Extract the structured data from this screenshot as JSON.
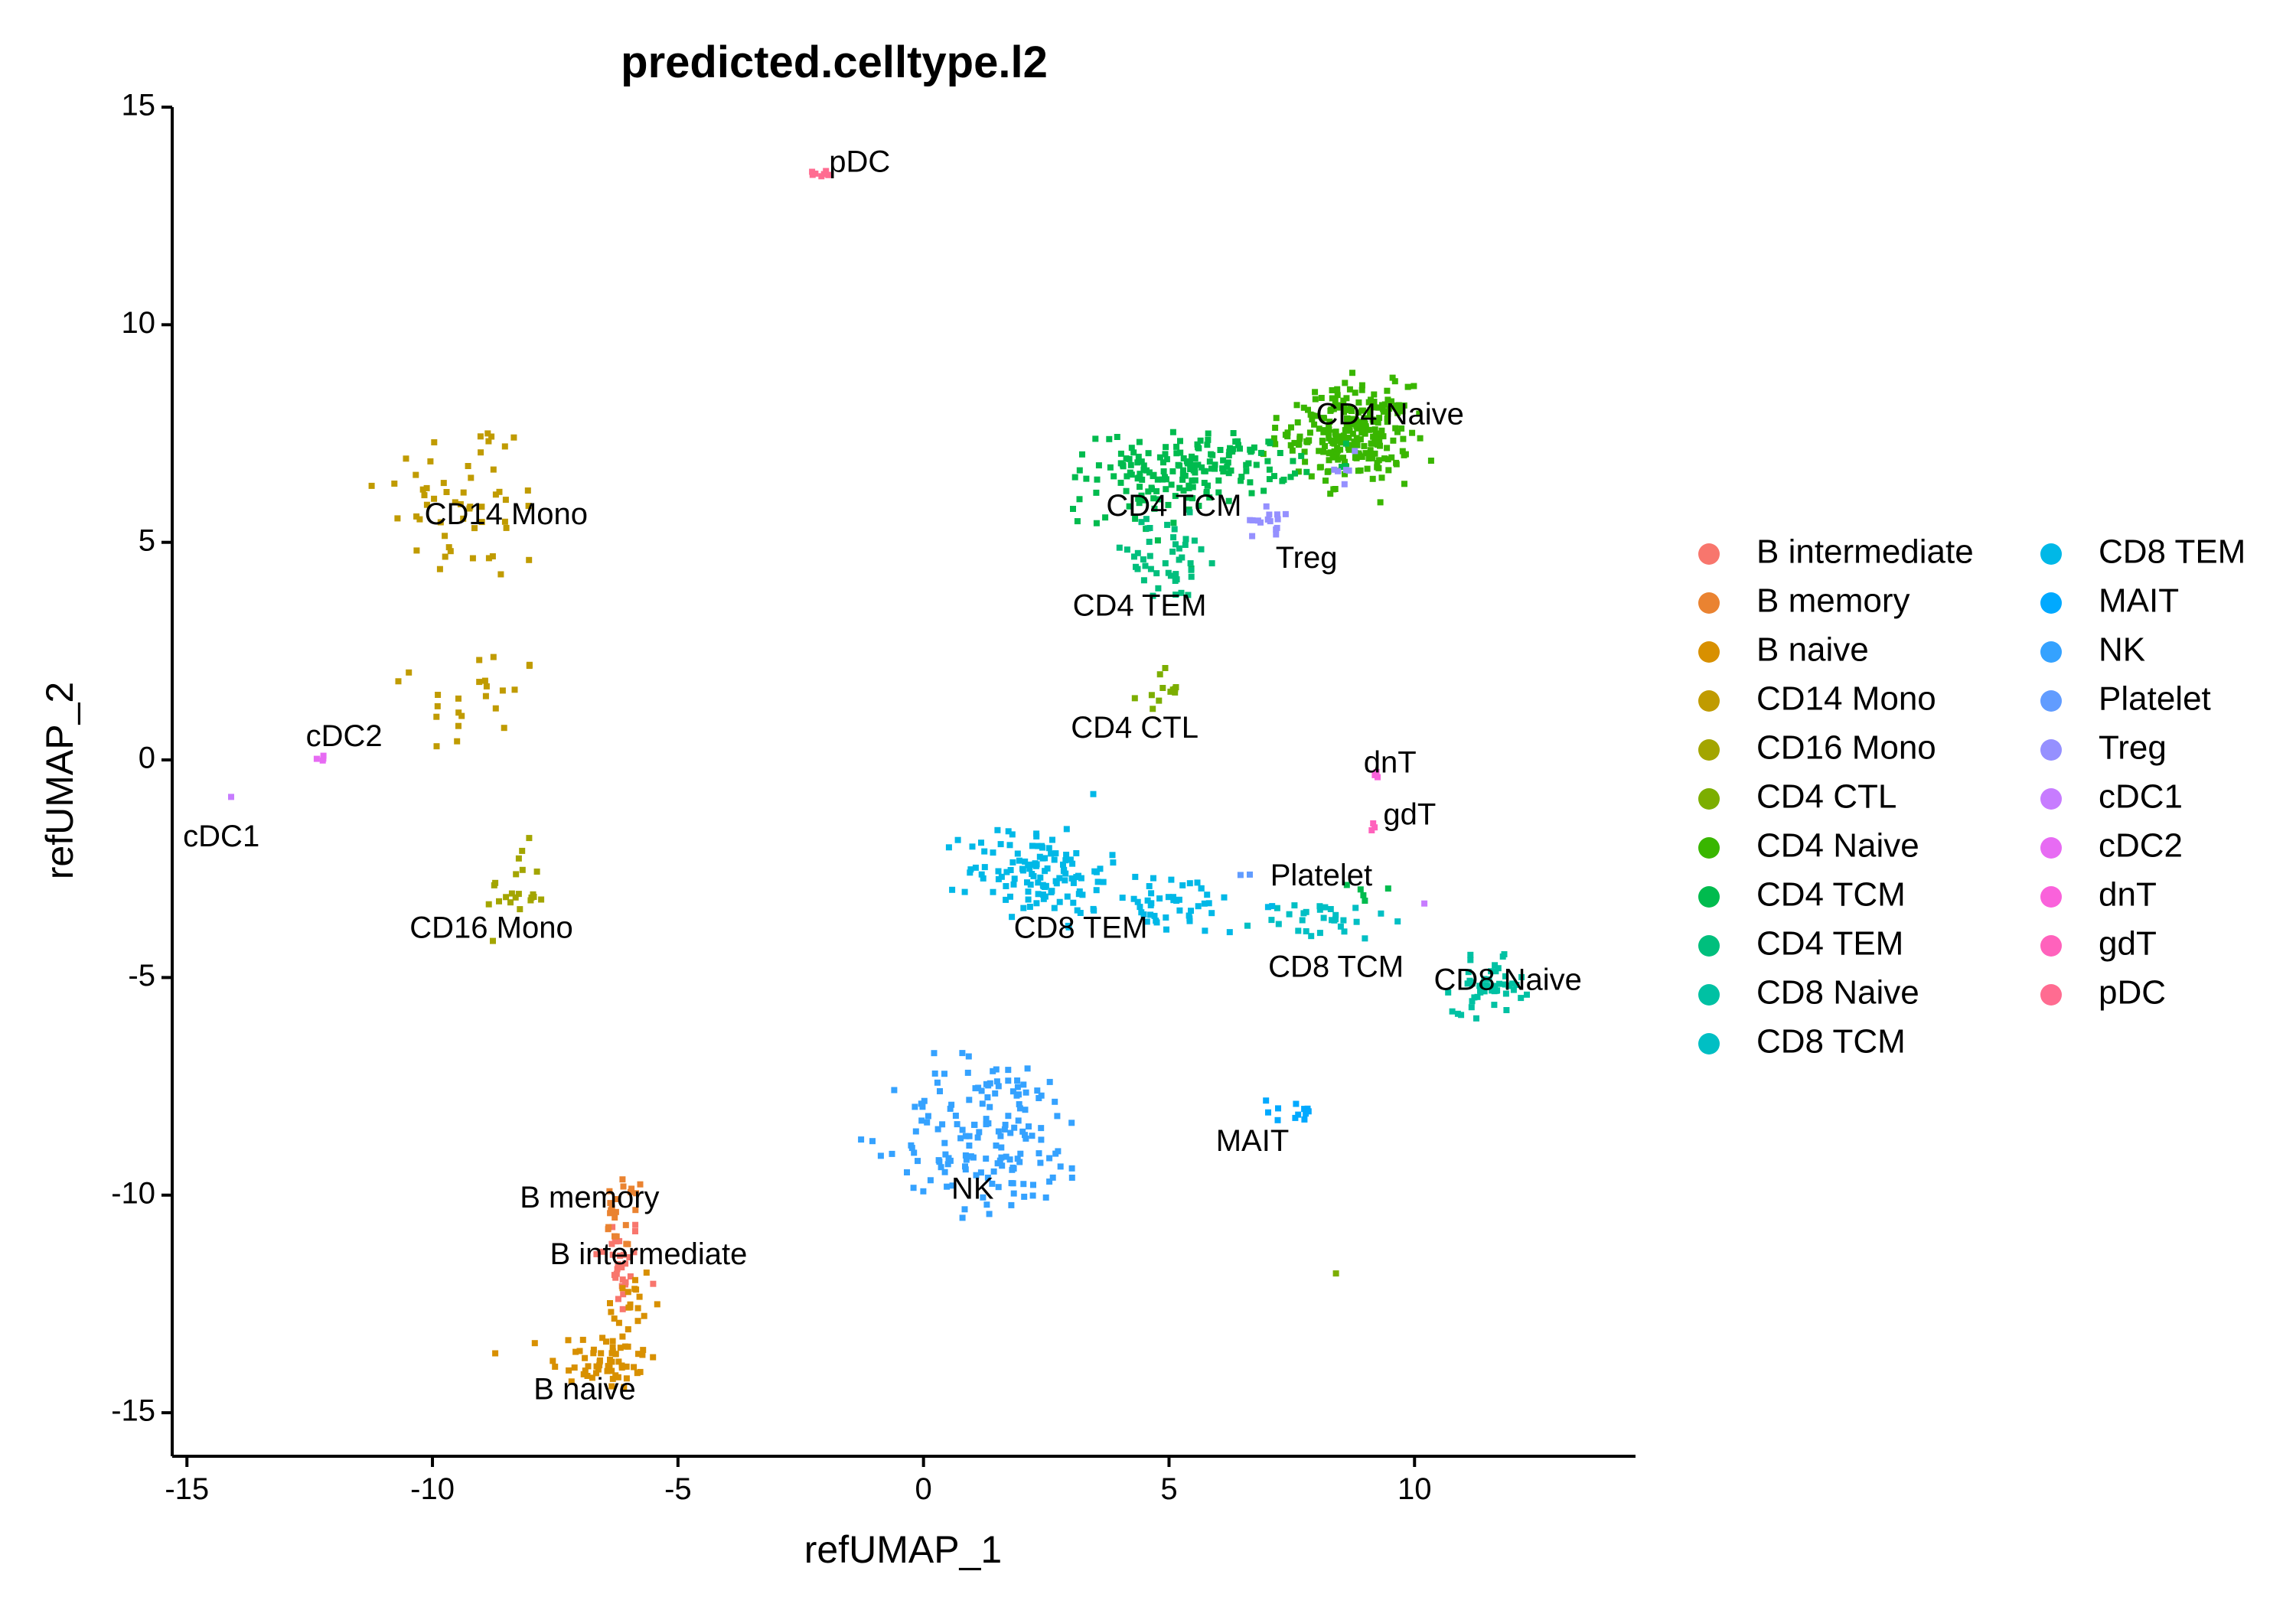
{
  "chart_data": {
    "type": "scatter",
    "title": "predicted.celltype.l2",
    "xlabel": "refUMAP_1",
    "ylabel": "refUMAP_2",
    "xlim": [
      -15.3,
      14.5
    ],
    "ylim": [
      -16,
      15
    ],
    "xticks": [
      -15,
      -10,
      -5,
      0,
      5,
      10
    ],
    "yticks": [
      -15,
      -10,
      -5,
      0,
      5,
      10,
      15
    ],
    "xtick_labels": [
      "-15",
      "-10",
      "-5",
      "0",
      "5",
      "10"
    ],
    "ytick_labels": [
      "-15",
      "-10",
      "-5",
      "0",
      "5",
      "10",
      "15"
    ],
    "legend_position": "right",
    "legend_columns": 2,
    "series": [
      {
        "name": "B intermediate",
        "color": "#F8766D",
        "label_text": "B intermediate",
        "label_at": [
          -5.6,
          -11.4
        ],
        "clusters": [
          {
            "c": [
              -6.2,
              -11.6
            ],
            "s": [
              0.25,
              0.6
            ],
            "n": 30
          }
        ]
      },
      {
        "name": "B memory",
        "color": "#EA8331",
        "label_text": "B memory",
        "label_at": [
          -6.8,
          -10.1
        ],
        "clusters": [
          {
            "c": [
              -6.1,
              -10.4
            ],
            "s": [
              0.22,
              0.45
            ],
            "n": 22
          }
        ]
      },
      {
        "name": "B naive",
        "color": "#D89000",
        "label_text": "B naive",
        "label_at": [
          -6.9,
          -14.5
        ],
        "clusters": [
          {
            "c": [
              -6.5,
              -13.8
            ],
            "s": [
              0.55,
              0.35
            ],
            "n": 60
          },
          {
            "c": [
              -6.0,
              -12.6
            ],
            "s": [
              0.25,
              0.6
            ],
            "n": 20
          }
        ]
      },
      {
        "name": "CD14 Mono",
        "color": "#C09B00",
        "label_text": "CD14 Mono",
        "label_at": [
          -8.5,
          5.6
        ],
        "clusters": [
          {
            "c": [
              -9.3,
              6.0
            ],
            "s": [
              0.9,
              1.0
            ],
            "n": 55
          },
          {
            "c": [
              -9.0,
              1.3
            ],
            "s": [
              0.6,
              0.7
            ],
            "n": 22
          }
        ]
      },
      {
        "name": "CD16 Mono",
        "color": "#A3A500",
        "label_text": "CD16 Mono",
        "label_at": [
          -8.8,
          -3.9
        ],
        "clusters": [
          {
            "c": [
              -8.3,
              -3.0
            ],
            "s": [
              0.3,
              0.5
            ],
            "n": 22
          }
        ]
      },
      {
        "name": "CD4 CTL",
        "color": "#7CAE00",
        "label_text": "CD4 CTL",
        "label_at": [
          4.3,
          0.7
        ],
        "clusters": [
          {
            "c": [
              4.8,
              1.6
            ],
            "s": [
              0.2,
              0.22
            ],
            "n": 12
          },
          {
            "c": [
              8.4,
              -11.8
            ],
            "s": [
              0.02,
              0.02
            ],
            "n": 1
          }
        ]
      },
      {
        "name": "CD4 Naive",
        "color": "#39B600",
        "label_text": "CD4 Naive",
        "label_at": [
          9.5,
          7.9
        ],
        "clusters": [
          {
            "c": [
              8.8,
              7.5
            ],
            "s": [
              0.55,
              0.55
            ],
            "n": 240
          },
          {
            "c": [
              7.8,
              7.3
            ],
            "s": [
              0.6,
              0.4
            ],
            "n": 20
          }
        ]
      },
      {
        "name": "CD4 TCM",
        "color": "#00BB4E",
        "label_text": "CD4 TCM",
        "label_at": [
          5.1,
          5.8
        ],
        "clusters": [
          {
            "c": [
              5.6,
              6.8
            ],
            "s": [
              1.0,
              0.35
            ],
            "n": 150
          },
          {
            "c": [
              4.5,
              5.9
            ],
            "s": [
              0.7,
              0.5
            ],
            "n": 40
          },
          {
            "c": [
              9.1,
              -3.1
            ],
            "s": [
              0.2,
              0.2
            ],
            "n": 5
          }
        ]
      },
      {
        "name": "CD4 TEM",
        "color": "#00BF7D",
        "label_text": "CD4 TEM",
        "label_at": [
          4.4,
          3.5
        ],
        "clusters": [
          {
            "c": [
              4.9,
              4.6
            ],
            "s": [
              0.7,
              0.5
            ],
            "n": 45
          }
        ]
      },
      {
        "name": "CD8 Naive",
        "color": "#00C1A3",
        "label_text": "CD8 Naive",
        "label_at": [
          11.9,
          -5.1
        ],
        "clusters": [
          {
            "c": [
              11.5,
              -5.2
            ],
            "s": [
              0.35,
              0.3
            ],
            "n": 50
          }
        ]
      },
      {
        "name": "CD8 TCM",
        "color": "#00BFC4",
        "label_text": "CD8 TCM",
        "label_at": [
          8.4,
          -4.8
        ],
        "clusters": [
          {
            "c": [
              8.1,
              -3.7
            ],
            "s": [
              0.7,
              0.25
            ],
            "n": 30
          }
        ]
      },
      {
        "name": "CD8 TEM",
        "color": "#00B8E7",
        "label_text": "CD8 TEM",
        "label_at": [
          3.2,
          -3.9
        ],
        "clusters": [
          {
            "c": [
              2.3,
              -2.5
            ],
            "s": [
              0.7,
              0.5
            ],
            "n": 110
          },
          {
            "c": [
              4.8,
              -3.3
            ],
            "s": [
              1.0,
              0.35
            ],
            "n": 60
          }
        ]
      },
      {
        "name": "MAIT",
        "color": "#00A9FF",
        "label_text": "MAIT",
        "label_at": [
          6.7,
          -8.8
        ],
        "clusters": [
          {
            "c": [
              7.3,
              -8.1
            ],
            "s": [
              0.4,
              0.2
            ],
            "n": 12
          }
        ]
      },
      {
        "name": "NK",
        "color": "#35A2FF",
        "label_text": "NK",
        "label_at": [
          1.0,
          -9.9
        ],
        "clusters": [
          {
            "c": [
              1.4,
              -8.6
            ],
            "s": [
              1.0,
              0.9
            ],
            "n": 160
          }
        ]
      },
      {
        "name": "Platelet",
        "color": "#619CFF",
        "label_text": "Platelet",
        "label_at": [
          8.1,
          -2.7
        ],
        "clusters": [
          {
            "c": [
              6.5,
              -2.6
            ],
            "s": [
              0.15,
              0.05
            ],
            "n": 2
          }
        ]
      },
      {
        "name": "Treg",
        "color": "#9590FF",
        "label_text": "Treg",
        "label_at": [
          7.8,
          4.6
        ],
        "clusters": [
          {
            "c": [
              7.1,
              5.5
            ],
            "s": [
              0.2,
              0.15
            ],
            "n": 15
          },
          {
            "c": [
              8.5,
              6.7
            ],
            "s": [
              0.2,
              0.2
            ],
            "n": 6
          }
        ]
      },
      {
        "name": "cDC1",
        "color": "#C77CFF",
        "label_text": "cDC1",
        "label_at": [
          -14.3,
          -1.8
        ],
        "clusters": [
          {
            "c": [
              -14.1,
              -0.85
            ],
            "s": [
              0.03,
              0.03
            ],
            "n": 1
          },
          {
            "c": [
              10.2,
              -3.3
            ],
            "s": [
              0.03,
              0.03
            ],
            "n": 1
          }
        ]
      },
      {
        "name": "cDC2",
        "color": "#E76BF3",
        "label_text": "cDC2",
        "label_at": [
          -11.8,
          0.5
        ],
        "clusters": [
          {
            "c": [
              -12.3,
              0.0
            ],
            "s": [
              0.08,
              0.1
            ],
            "n": 4
          }
        ]
      },
      {
        "name": "dnT",
        "color": "#FA62DB",
        "label_text": "dnT",
        "label_at": [
          9.5,
          -0.1
        ],
        "clusters": [
          {
            "c": [
              9.2,
              -0.3
            ],
            "s": [
              0.05,
              0.06
            ],
            "n": 3
          }
        ]
      },
      {
        "name": "gdT",
        "color": "#FF62BC",
        "label_text": "gdT",
        "label_at": [
          9.9,
          -1.3
        ],
        "clusters": [
          {
            "c": [
              9.1,
              -1.5
            ],
            "s": [
              0.1,
              0.05
            ],
            "n": 3
          }
        ]
      },
      {
        "name": "pDC",
        "color": "#FF6C91",
        "label_text": "pDC",
        "label_at": [
          -1.3,
          13.7
        ],
        "clusters": [
          {
            "c": [
              -2.0,
              13.45
            ],
            "s": [
              0.15,
              0.08
            ],
            "n": 8
          }
        ]
      }
    ]
  }
}
